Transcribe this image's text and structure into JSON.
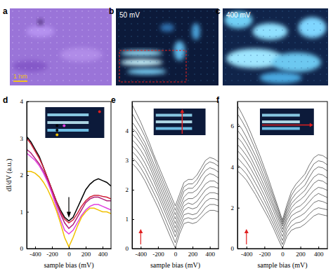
{
  "images": [
    {
      "panel": "a",
      "scale_bar": "1 nm",
      "color": "#9a74d8"
    },
    {
      "panel": "b",
      "annotation": "50 mV",
      "color": "#0c1a3a"
    },
    {
      "panel": "c",
      "annotation": "400 mV",
      "color": "#10244a"
    }
  ],
  "chart_data": [
    {
      "type": "line",
      "panel": "d",
      "x": [
        -500,
        -450,
        -400,
        -350,
        -300,
        -250,
        -200,
        -150,
        -100,
        -50,
        0,
        50,
        100,
        150,
        200,
        250,
        300,
        350,
        400,
        450,
        500
      ],
      "xlim": [
        -500,
        500
      ],
      "xticks": [
        -400,
        -200,
        0,
        200,
        400
      ],
      "ylim": [
        0,
        4
      ],
      "yticks": [
        0,
        1,
        2,
        3,
        4
      ],
      "x_label": "sample bias (mV)",
      "y_label": "dI/dV (a.u.)",
      "series": [
        {
          "color": "#000000",
          "values": [
            3.05,
            2.9,
            2.7,
            2.5,
            2.2,
            1.9,
            1.6,
            1.3,
            1.05,
            0.85,
            0.75,
            0.85,
            1.1,
            1.35,
            1.6,
            1.75,
            1.85,
            1.9,
            1.85,
            1.8,
            1.7
          ]
        },
        {
          "color": "#d0203a",
          "values": [
            3.0,
            2.85,
            2.65,
            2.45,
            2.2,
            1.9,
            1.6,
            1.3,
            1.0,
            0.8,
            0.7,
            0.78,
            0.95,
            1.15,
            1.3,
            1.4,
            1.45,
            1.45,
            1.42,
            1.4,
            1.35
          ]
        },
        {
          "color": "#b0207a",
          "values": [
            2.7,
            2.6,
            2.45,
            2.3,
            2.1,
            1.85,
            1.55,
            1.25,
            0.95,
            0.7,
            0.55,
            0.65,
            0.85,
            1.05,
            1.25,
            1.35,
            1.4,
            1.4,
            1.35,
            1.3,
            1.3
          ]
        },
        {
          "color": "#e040e0",
          "values": [
            2.6,
            2.5,
            2.4,
            2.25,
            2.05,
            1.8,
            1.5,
            1.15,
            0.8,
            0.5,
            0.4,
            0.5,
            0.7,
            0.9,
            1.05,
            1.15,
            1.2,
            1.2,
            1.15,
            1.1,
            1.05
          ]
        },
        {
          "color": "#f0c000",
          "values": [
            2.1,
            2.1,
            2.05,
            1.95,
            1.8,
            1.6,
            1.35,
            1.05,
            0.7,
            0.3,
            0.05,
            0.3,
            0.6,
            0.85,
            1.0,
            1.1,
            1.1,
            1.05,
            1.0,
            1.0,
            0.95
          ]
        }
      ]
    },
    {
      "type": "line",
      "panel": "e",
      "x": [
        -500,
        -450,
        -400,
        -350,
        -300,
        -250,
        -200,
        -150,
        -100,
        -50,
        0,
        50,
        100,
        150,
        200,
        250,
        300,
        350,
        400,
        450,
        500
      ],
      "xlim": [
        -500,
        500
      ],
      "xticks": [
        -400,
        -200,
        0,
        200,
        400
      ],
      "ylim": [
        0,
        5
      ],
      "yticks": [
        0,
        1,
        2,
        3,
        4
      ],
      "x_label": "sample bias (mV)",
      "series": [
        {
          "color": "#3a3a3a",
          "values": [
            2.9,
            2.75,
            2.55,
            2.3,
            2.0,
            1.7,
            1.4,
            1.05,
            0.7,
            0.35,
            0.02,
            0.5,
            0.85,
            0.9,
            0.85,
            0.9,
            1.05,
            1.2,
            1.3,
            1.3,
            1.25
          ]
        },
        {
          "color": "#3a3a3a",
          "values": [
            3.1,
            2.95,
            2.75,
            2.5,
            2.2,
            1.9,
            1.6,
            1.25,
            0.9,
            0.55,
            0.2,
            0.65,
            1.0,
            1.05,
            1.0,
            1.05,
            1.2,
            1.4,
            1.5,
            1.5,
            1.45
          ]
        },
        {
          "color": "#3a3a3a",
          "values": [
            3.3,
            3.15,
            2.95,
            2.7,
            2.4,
            2.1,
            1.8,
            1.45,
            1.1,
            0.75,
            0.4,
            0.8,
            1.15,
            1.2,
            1.15,
            1.2,
            1.4,
            1.6,
            1.7,
            1.7,
            1.65
          ]
        },
        {
          "color": "#3a3a3a",
          "values": [
            3.5,
            3.35,
            3.15,
            2.9,
            2.6,
            2.3,
            1.95,
            1.6,
            1.25,
            0.9,
            0.55,
            0.95,
            1.3,
            1.4,
            1.35,
            1.4,
            1.6,
            1.8,
            1.9,
            1.9,
            1.85
          ]
        },
        {
          "color": "#3a3a3a",
          "values": [
            3.7,
            3.55,
            3.35,
            3.1,
            2.8,
            2.45,
            2.1,
            1.75,
            1.4,
            1.05,
            0.7,
            1.1,
            1.45,
            1.55,
            1.5,
            1.6,
            1.8,
            2.0,
            2.1,
            2.1,
            2.05
          ]
        },
        {
          "color": "#3a3a3a",
          "values": [
            3.9,
            3.75,
            3.55,
            3.3,
            2.95,
            2.6,
            2.25,
            1.9,
            1.55,
            1.2,
            0.85,
            1.25,
            1.6,
            1.7,
            1.7,
            1.8,
            2.0,
            2.2,
            2.3,
            2.3,
            2.2
          ]
        },
        {
          "color": "#3a3a3a",
          "values": [
            4.1,
            3.95,
            3.7,
            3.45,
            3.1,
            2.75,
            2.4,
            2.05,
            1.7,
            1.35,
            1.0,
            1.4,
            1.75,
            1.9,
            1.9,
            2.0,
            2.2,
            2.45,
            2.55,
            2.5,
            2.4
          ]
        },
        {
          "color": "#3a3a3a",
          "values": [
            4.3,
            4.1,
            3.85,
            3.6,
            3.25,
            2.9,
            2.55,
            2.2,
            1.85,
            1.5,
            1.15,
            1.55,
            1.95,
            2.05,
            2.05,
            2.2,
            2.45,
            2.65,
            2.75,
            2.7,
            2.6
          ]
        },
        {
          "color": "#3a3a3a",
          "values": [
            4.6,
            4.35,
            4.1,
            3.8,
            3.45,
            3.1,
            2.7,
            2.35,
            2.0,
            1.65,
            1.3,
            1.7,
            2.1,
            2.2,
            2.2,
            2.35,
            2.6,
            2.85,
            2.95,
            2.9,
            2.8
          ]
        },
        {
          "color": "#3a3a3a",
          "values": [
            4.9,
            4.6,
            4.3,
            3.95,
            3.6,
            3.2,
            2.85,
            2.5,
            2.15,
            1.8,
            1.45,
            1.85,
            2.25,
            2.35,
            2.35,
            2.5,
            2.75,
            3.0,
            3.1,
            3.05,
            2.95
          ]
        }
      ]
    },
    {
      "type": "line",
      "panel": "f",
      "x": [
        -500,
        -450,
        -400,
        -350,
        -300,
        -250,
        -200,
        -150,
        -100,
        -50,
        0,
        50,
        100,
        150,
        200,
        250,
        300,
        350,
        400,
        450,
        500
      ],
      "xlim": [
        -500,
        500
      ],
      "xticks": [
        -400,
        -200,
        0,
        200,
        400
      ],
      "ylim": [
        0,
        7.2
      ],
      "yticks": [
        0,
        2,
        4,
        6
      ],
      "x_label": "sample bias (mV)",
      "series": [
        {
          "color": "#3a3a3a",
          "values": [
            3.8,
            3.6,
            3.35,
            3.0,
            2.65,
            2.25,
            1.85,
            1.45,
            1.0,
            0.5,
            0.02,
            0.6,
            0.9,
            1.0,
            1.05,
            1.2,
            1.4,
            1.6,
            1.7,
            1.65,
            1.6
          ]
        },
        {
          "color": "#3a3a3a",
          "values": [
            4.1,
            3.9,
            3.65,
            3.3,
            2.9,
            2.5,
            2.1,
            1.65,
            1.2,
            0.7,
            0.2,
            0.8,
            1.1,
            1.25,
            1.3,
            1.45,
            1.7,
            1.9,
            2.0,
            1.95,
            1.9
          ]
        },
        {
          "color": "#3a3a3a",
          "values": [
            4.45,
            4.2,
            3.95,
            3.6,
            3.2,
            2.8,
            2.35,
            1.9,
            1.4,
            0.9,
            0.4,
            1.0,
            1.35,
            1.5,
            1.6,
            1.75,
            2.0,
            2.25,
            2.35,
            2.3,
            2.2
          ]
        },
        {
          "color": "#3a3a3a",
          "values": [
            4.8,
            4.55,
            4.25,
            3.9,
            3.5,
            3.05,
            2.6,
            2.1,
            1.6,
            1.1,
            0.6,
            1.2,
            1.6,
            1.75,
            1.85,
            2.05,
            2.3,
            2.55,
            2.7,
            2.6,
            2.5
          ]
        },
        {
          "color": "#3a3a3a",
          "values": [
            5.1,
            4.85,
            4.55,
            4.2,
            3.75,
            3.3,
            2.85,
            2.35,
            1.85,
            1.3,
            0.8,
            1.4,
            1.8,
            2.0,
            2.1,
            2.3,
            2.6,
            2.85,
            3.0,
            2.95,
            2.85
          ]
        },
        {
          "color": "#3a3a3a",
          "values": [
            5.45,
            5.2,
            4.85,
            4.45,
            4.0,
            3.55,
            3.05,
            2.55,
            2.05,
            1.5,
            0.95,
            1.55,
            2.0,
            2.25,
            2.4,
            2.6,
            2.9,
            3.2,
            3.35,
            3.3,
            3.15
          ]
        },
        {
          "color": "#3a3a3a",
          "values": [
            5.8,
            5.5,
            5.15,
            4.75,
            4.3,
            3.8,
            3.3,
            2.75,
            2.2,
            1.65,
            1.1,
            1.7,
            2.2,
            2.45,
            2.65,
            2.85,
            3.2,
            3.5,
            3.65,
            3.6,
            3.45
          ]
        },
        {
          "color": "#3a3a3a",
          "values": [
            6.15,
            5.85,
            5.45,
            5.0,
            4.55,
            4.05,
            3.5,
            2.95,
            2.4,
            1.8,
            1.2,
            1.85,
            2.4,
            2.7,
            2.9,
            3.1,
            3.5,
            3.85,
            4.0,
            3.95,
            3.8
          ]
        },
        {
          "color": "#3a3a3a",
          "values": [
            6.6,
            6.25,
            5.85,
            5.35,
            4.85,
            4.3,
            3.75,
            3.15,
            2.55,
            1.95,
            1.3,
            2.0,
            2.6,
            2.95,
            3.15,
            3.4,
            3.8,
            4.15,
            4.3,
            4.25,
            4.1
          ]
        },
        {
          "color": "#3a3a3a",
          "values": [
            7.0,
            6.6,
            6.15,
            5.65,
            5.1,
            4.55,
            3.95,
            3.35,
            2.7,
            2.05,
            1.4,
            2.15,
            2.8,
            3.15,
            3.4,
            3.65,
            4.1,
            4.45,
            4.6,
            4.55,
            4.4
          ]
        }
      ]
    }
  ]
}
